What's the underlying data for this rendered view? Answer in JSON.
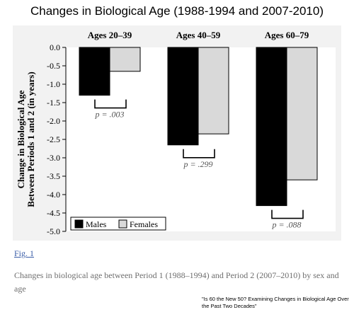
{
  "page": {
    "title": "Changes in Biological Age (1988-1994 and 2007-2010)",
    "fig_link": "Fig. 1",
    "caption": "Changes in biological age between Period 1 (1988–1994) and Period 2 (2007–2010) by sex and age",
    "source": "\"Is 60 the New 50? Examining Changes in Biological Age Over the Past Two Decades\""
  },
  "chart_data": {
    "type": "bar",
    "categories": [
      "Ages 20–39",
      "Ages 40–59",
      "Ages 60–79"
    ],
    "series": [
      {
        "name": "Males",
        "values": [
          -1.3,
          -2.65,
          -4.3
        ],
        "color": "#000000"
      },
      {
        "name": "Females",
        "values": [
          -0.65,
          -2.35,
          -3.6
        ],
        "color": "#d9d9d9"
      }
    ],
    "ylabel_lines": [
      "Change in Biological Age",
      "Between Periods 1 and 2 (in years)"
    ],
    "ylim": [
      -5.0,
      0.0
    ],
    "yticks": [
      "0.0",
      "-0.5",
      "-1.0",
      "-1.5",
      "-2.0",
      "-2.5",
      "-3.0",
      "-3.5",
      "-4.0",
      "-4.5",
      "-5.0"
    ],
    "annotations": [
      "p = .003",
      "p = .299",
      "p = .088"
    ],
    "legend_position": "bottom-left",
    "grid": false
  }
}
